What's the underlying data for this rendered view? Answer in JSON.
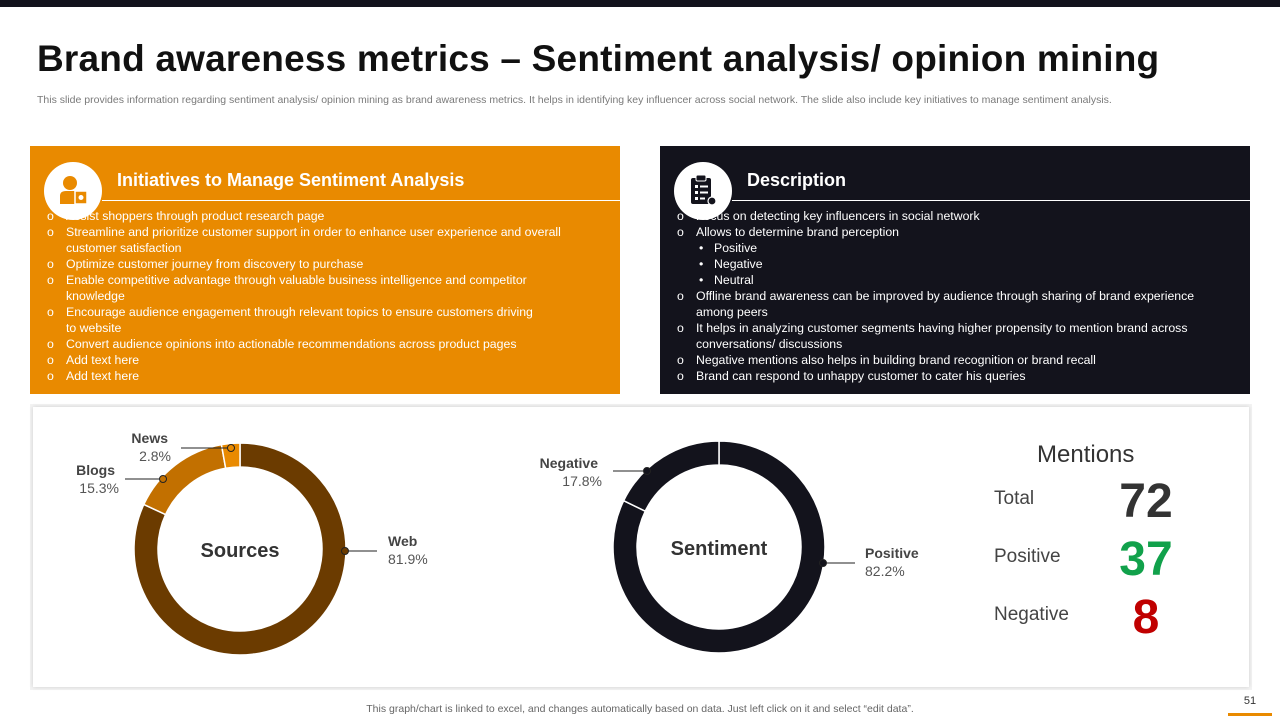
{
  "slide": {
    "title": "Brand awareness metrics – Sentiment analysis/ opinion mining",
    "subtitle": "This slide provides information regarding sentiment analysis/ opinion mining as brand awareness metrics. It helps in identifying key influencer across social network. The slide also include key initiatives to manage sentiment analysis.",
    "footer_note": "This graph/chart is linked to excel,  and changes automatically based on data. Just left click on it and select “edit data”.",
    "page_number": "51"
  },
  "colors": {
    "orange": "#e98a00",
    "dark": "#13131c",
    "brown": "#6b3b00",
    "blogs_brown": "#c27000",
    "green": "#11a14b",
    "red": "#c00000"
  },
  "initiatives": {
    "title": "Initiatives to Manage Sentiment Analysis",
    "icon": "user-gear-icon",
    "items": [
      "Assist shoppers through product research page",
      "Streamline and prioritize customer support in order to enhance user experience and overall customer satisfaction",
      "Optimize customer journey from discovery to purchase",
      "Enable competitive advantage through valuable business intelligence and competitor knowledge",
      "Encourage audience engagement through relevant topics to ensure customers driving to website",
      "Convert audience opinions into actionable recommendations across product pages",
      "Add text here",
      "Add text here"
    ]
  },
  "description": {
    "title": "Description",
    "icon": "clipboard-icon",
    "items": [
      "Focus on detecting key influencers in social network",
      "Allows to determine brand perception",
      "Offline brand awareness can be improved by audience through sharing of brand experience among peers",
      "It helps in analyzing customer segments having higher propensity to mention brand across conversations/ discussions",
      "Negative mentions also helps in building brand recognition or brand recall",
      "Brand can respond to unhappy customer to cater his queries"
    ],
    "perception_items": [
      "Positive",
      "Negative",
      "Neutral"
    ]
  },
  "chart_data": [
    {
      "type": "pie",
      "title": "Sources",
      "categories": [
        "Web",
        "Blogs",
        "News"
      ],
      "values": [
        81.9,
        15.3,
        2.8
      ],
      "value_labels": [
        "81.9%",
        "15.3%",
        "2.8%"
      ],
      "colors": [
        "#6b3b00",
        "#c27000",
        "#e98a00"
      ]
    },
    {
      "type": "pie",
      "title": "Sentiment",
      "categories": [
        "Positive",
        "Negative"
      ],
      "values": [
        82.2,
        17.8
      ],
      "value_labels": [
        "82.2%",
        "17.8%"
      ],
      "colors": [
        "#13131c",
        "#13131c"
      ]
    }
  ],
  "mentions": {
    "title": "Mentions",
    "total_label": "Total",
    "total_value": "72",
    "positive_label": "Positive",
    "positive_value": "37",
    "negative_label": "Negative",
    "negative_value": "8"
  }
}
